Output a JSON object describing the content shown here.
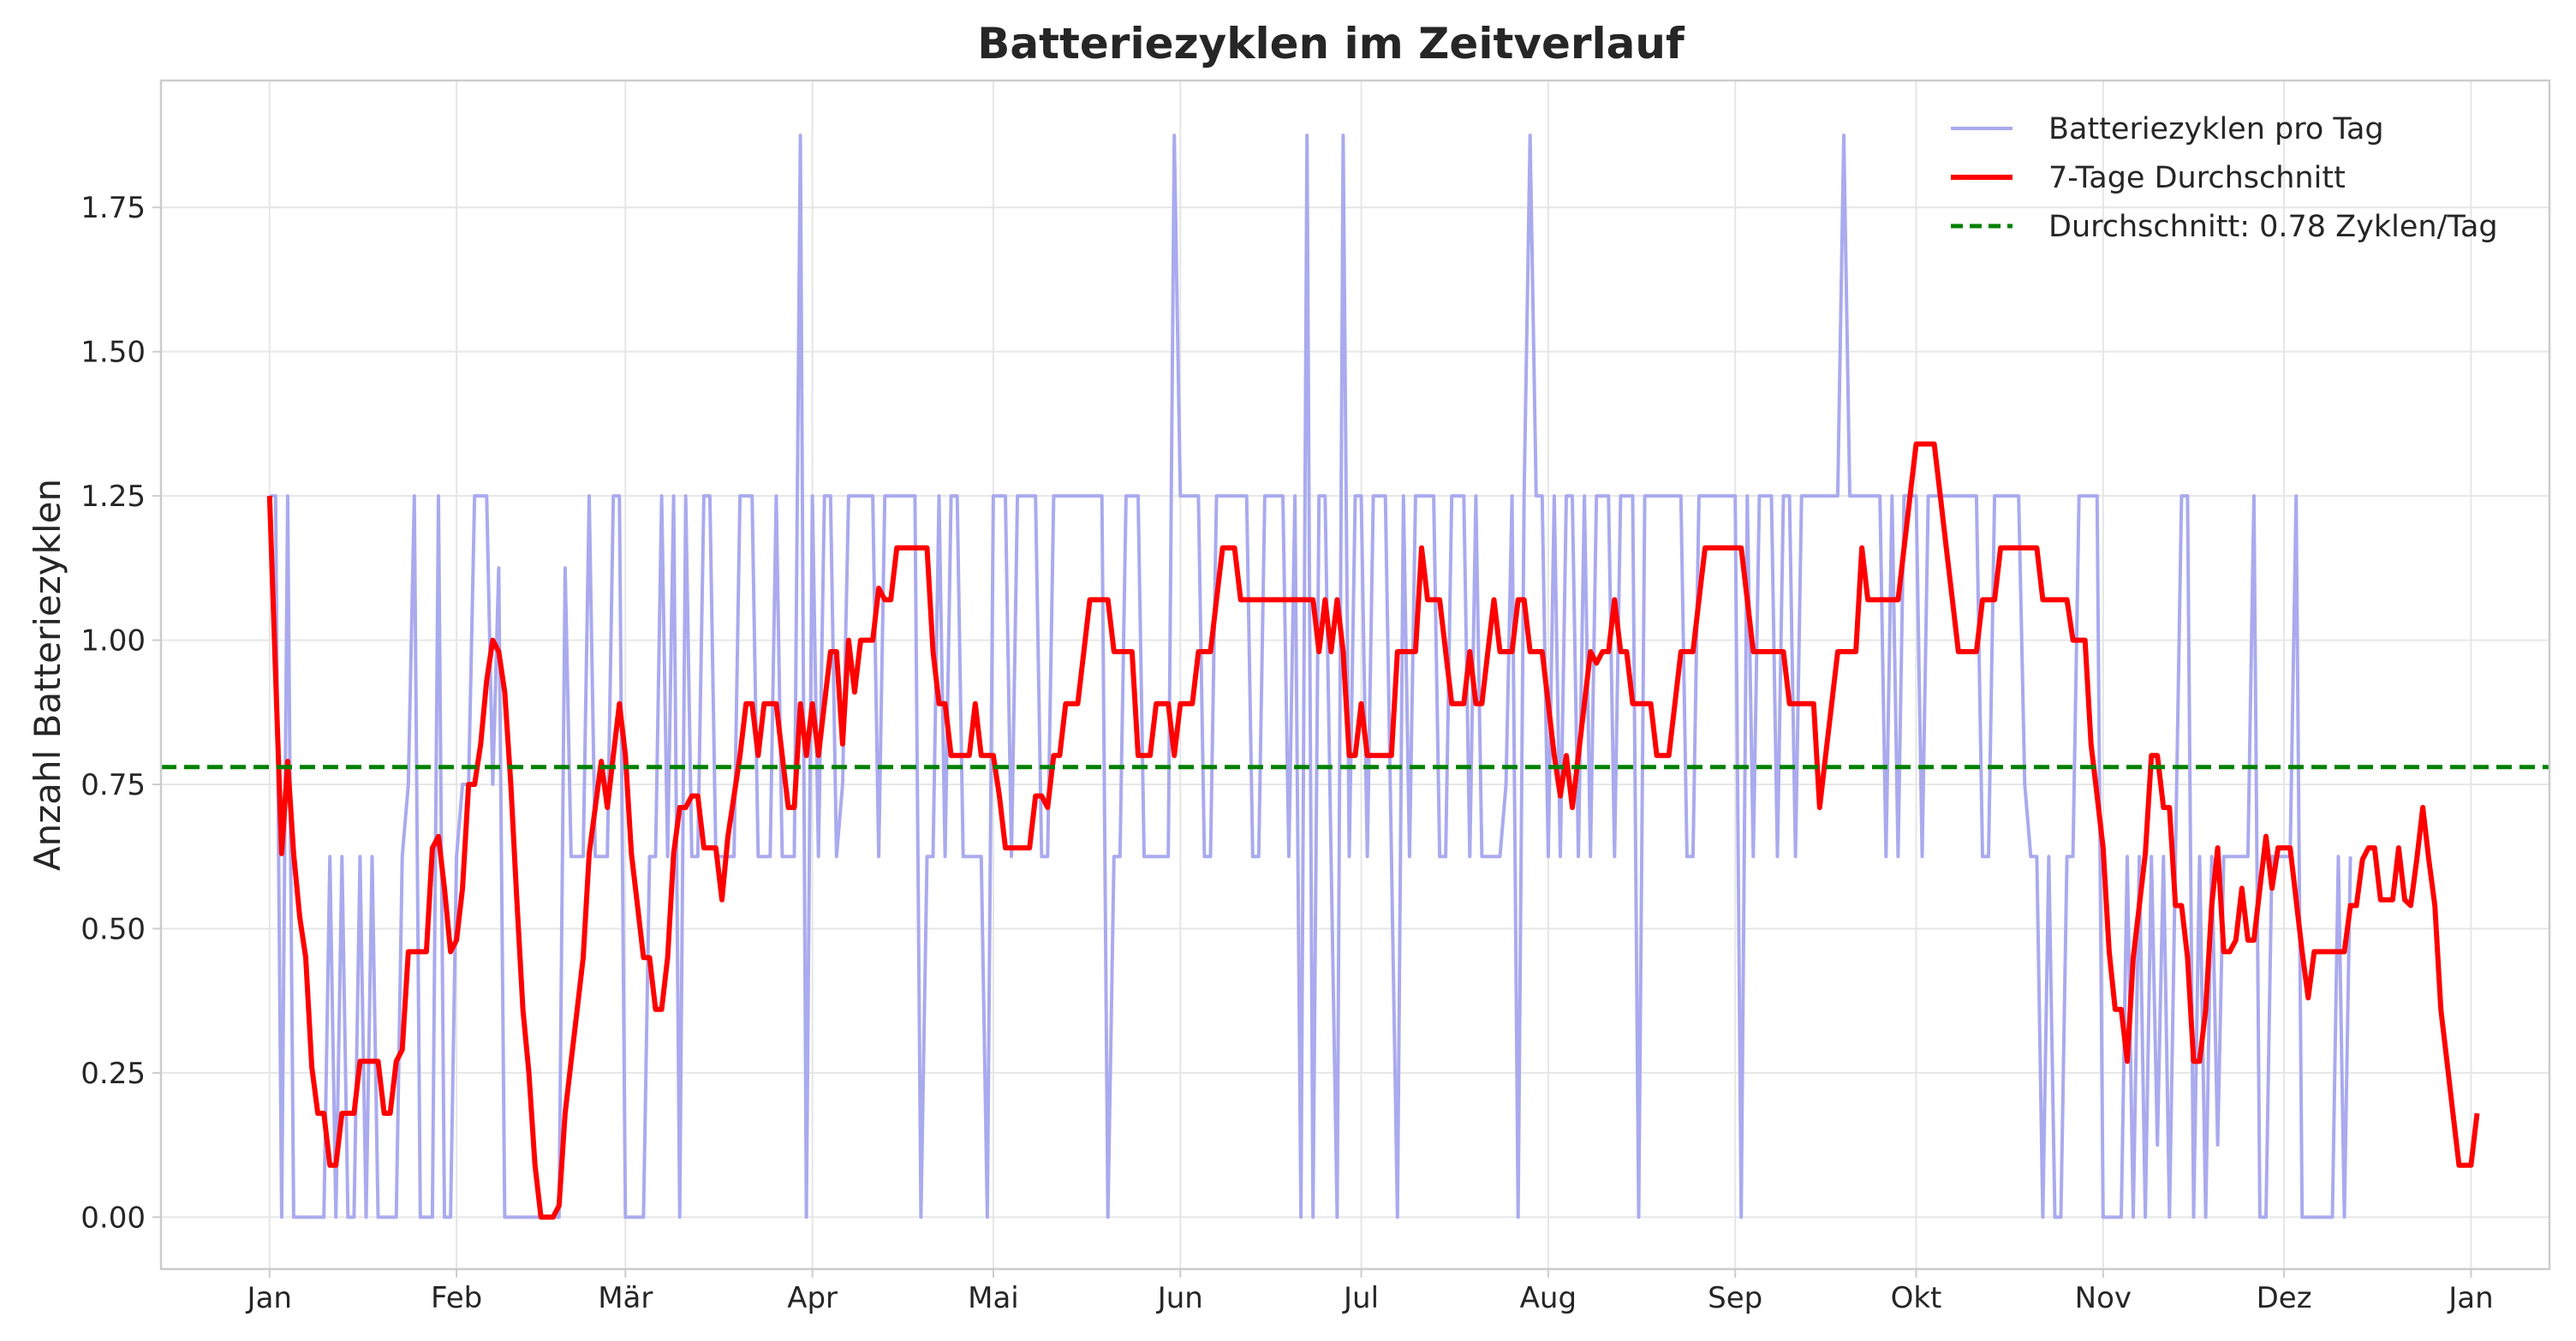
{
  "chart_data": {
    "type": "line",
    "title": "Batteriezyklen im Zeitverlauf",
    "xlabel": "",
    "ylabel": "Anzahl Batteriezyklen",
    "x_ticks": [
      "Jan",
      "Feb",
      "Mär",
      "Apr",
      "Mai",
      "Jun",
      "Jul",
      "Aug",
      "Sep",
      "Okt",
      "Nov",
      "Dez",
      "Jan"
    ],
    "x_tick_days": [
      0,
      31,
      59,
      90,
      120,
      151,
      181,
      212,
      243,
      273,
      304,
      334,
      365
    ],
    "x_range_days": [
      -18,
      378
    ],
    "y_ticks": [
      "0.00",
      "0.25",
      "0.50",
      "0.75",
      "1.00",
      "1.25",
      "1.50",
      "1.75"
    ],
    "ylim": [
      -0.09,
      1.97
    ],
    "grid": true,
    "legend_position": "top-right",
    "series": [
      {
        "name": "Batteriezyklen pro Tag",
        "color": "#aaaaee",
        "values": [
          1.25,
          1.25,
          0,
          1.25,
          0,
          0,
          0,
          0,
          0,
          0,
          0.625,
          0,
          0.625,
          0,
          0,
          0.625,
          0,
          0.625,
          0,
          0,
          0,
          0,
          0.625,
          0.75,
          1.25,
          0,
          0,
          0,
          1.25,
          0,
          0,
          0.625,
          0.75,
          0.75,
          1.25,
          1.25,
          1.25,
          0.75,
          1.125,
          0,
          0,
          0,
          0,
          0,
          0,
          0,
          0,
          0,
          0,
          1.125,
          0.625,
          0.625,
          0.625,
          1.25,
          0.625,
          0.625,
          0.625,
          1.25,
          1.25,
          0,
          0,
          0,
          0,
          0.625,
          0.625,
          1.25,
          0.625,
          1.25,
          0,
          1.25,
          0.625,
          0.625,
          1.25,
          1.25,
          0.625,
          0.625,
          0.625,
          0.625,
          1.25,
          1.25,
          1.25,
          0.625,
          0.625,
          0.625,
          1.25,
          0.625,
          0.625,
          0.625,
          1.875,
          0,
          1.25,
          0.625,
          1.25,
          1.25,
          0.625,
          0.75,
          1.25,
          1.25,
          1.25,
          1.25,
          1.25,
          0.625,
          1.25,
          1.25,
          1.25,
          1.25,
          1.25,
          1.25,
          0,
          0.625,
          0.625,
          1.25,
          0.625,
          1.25,
          1.25,
          0.625,
          0.625,
          0.625,
          0.625,
          0,
          1.25,
          1.25,
          1.25,
          0.625,
          1.25,
          1.25,
          1.25,
          1.25,
          0.625,
          0.625,
          1.25,
          1.25,
          1.25,
          1.25,
          1.25,
          1.25,
          1.25,
          1.25,
          1.25,
          0,
          0.625,
          0.625,
          1.25,
          1.25,
          1.25,
          0.625,
          0.625,
          0.625,
          0.625,
          0.625,
          1.875,
          1.25,
          1.25,
          1.25,
          1.25,
          0.625,
          0.625,
          1.25,
          1.25,
          1.25,
          1.25,
          1.25,
          1.25,
          0.625,
          0.625,
          1.25,
          1.25,
          1.25,
          1.25,
          0.625,
          1.25,
          0,
          1.875,
          0,
          1.25,
          1.25,
          0.625,
          0,
          1.875,
          0.625,
          1.25,
          1.25,
          0.625,
          1.25,
          1.25,
          1.25,
          0.625,
          0,
          1.25,
          0.625,
          1.25,
          1.25,
          1.25,
          1.25,
          0.625,
          0.625,
          1.25,
          1.25,
          1.25,
          0.625,
          1.25,
          0.625,
          0.625,
          0.625,
          0.625,
          0.75,
          1.25,
          0,
          1.25,
          1.875,
          1.25,
          1.25,
          0.625,
          1.25,
          0.625,
          1.25,
          1.25,
          0.625,
          1.25,
          0.625,
          1.25,
          1.25,
          1.25,
          0.625,
          1.25,
          1.25,
          1.25,
          0,
          1.25,
          1.25,
          1.25,
          1.25,
          1.25,
          1.25,
          1.25,
          0.625,
          0.625,
          1.25,
          1.25,
          1.25,
          1.25,
          1.25,
          1.25,
          1.25,
          0,
          1.25,
          0.625,
          1.25,
          1.25,
          1.25,
          0.625,
          1.25,
          1.25,
          0.625,
          1.25,
          1.25,
          1.25,
          1.25,
          1.25,
          1.25,
          1.25,
          1.875,
          1.25,
          1.25,
          1.25,
          1.25,
          1.25,
          1.25,
          0.625,
          1.25,
          0.625,
          1.25,
          1.25,
          1.25,
          0.625,
          1.25,
          1.25,
          1.25,
          1.25,
          1.25,
          1.25,
          1.25,
          1.25,
          1.25,
          0.625,
          0.625,
          1.25,
          1.25,
          1.25,
          1.25,
          1.25,
          0.75,
          0.625,
          0.625,
          0,
          0.625,
          0,
          0,
          0.625,
          0.625,
          1.25,
          1.25,
          1.25,
          1.25,
          0,
          0,
          0,
          0,
          0.625,
          0,
          0.625,
          0,
          0.625,
          0.125,
          0.625,
          0,
          0.625,
          1.25,
          1.25,
          0,
          0.625,
          0,
          0.625,
          0.125,
          0.625,
          0.625,
          0.625,
          0.625,
          0.625,
          1.25,
          0,
          0,
          0.625,
          0.625,
          0.625,
          0.625,
          1.25,
          0,
          0,
          0,
          0,
          0,
          0,
          0.625,
          0,
          0.625
        ]
      },
      {
        "name": "7-Tage Durchschnitt",
        "color": "#ff0000",
        "values": [
          1.25,
          0.94,
          0.63,
          0.79,
          0.63,
          0.52,
          0.45,
          0.26,
          0.18,
          0.18,
          0.09,
          0.09,
          0.18,
          0.18,
          0.18,
          0.27,
          0.27,
          0.27,
          0.27,
          0.18,
          0.18,
          0.27,
          0.29,
          0.46,
          0.46,
          0.46,
          0.46,
          0.64,
          0.66,
          0.57,
          0.46,
          0.48,
          0.57,
          0.75,
          0.75,
          0.82,
          0.93,
          1.0,
          0.98,
          0.91,
          0.75,
          0.55,
          0.36,
          0.25,
          0.09,
          0.0,
          0.0,
          0.0,
          0.02,
          0.18,
          0.27,
          0.36,
          0.45,
          0.63,
          0.71,
          0.79,
          0.71,
          0.8,
          0.89,
          0.8,
          0.63,
          0.54,
          0.45,
          0.45,
          0.36,
          0.36,
          0.45,
          0.63,
          0.71,
          0.71,
          0.73,
          0.73,
          0.64,
          0.64,
          0.64,
          0.55,
          0.66,
          0.73,
          0.8,
          0.89,
          0.89,
          0.8,
          0.89,
          0.89,
          0.89,
          0.8,
          0.71,
          0.71,
          0.89,
          0.8,
          0.89,
          0.8,
          0.89,
          0.98,
          0.98,
          0.82,
          1.0,
          0.91,
          1.0,
          1.0,
          1.0,
          1.09,
          1.07,
          1.07,
          1.16,
          1.16,
          1.16,
          1.16,
          1.16,
          1.16,
          0.98,
          0.89,
          0.89,
          0.8,
          0.8,
          0.8,
          0.8,
          0.89,
          0.8,
          0.8,
          0.8,
          0.73,
          0.64,
          0.64,
          0.64,
          0.64,
          0.64,
          0.73,
          0.73,
          0.71,
          0.8,
          0.8,
          0.89,
          0.89,
          0.89,
          0.98,
          1.07,
          1.07,
          1.07,
          1.07,
          0.98,
          0.98,
          0.98,
          0.98,
          0.8,
          0.8,
          0.8,
          0.89,
          0.89,
          0.89,
          0.8,
          0.89,
          0.89,
          0.89,
          0.98,
          0.98,
          0.98,
          1.07,
          1.16,
          1.16,
          1.16,
          1.07,
          1.07,
          1.07,
          1.07,
          1.07,
          1.07,
          1.07,
          1.07,
          1.07,
          1.07,
          1.07,
          1.07,
          1.07,
          0.98,
          1.07,
          0.98,
          1.07,
          0.98,
          0.8,
          0.8,
          0.89,
          0.8,
          0.8,
          0.8,
          0.8,
          0.8,
          0.98,
          0.98,
          0.98,
          0.98,
          1.16,
          1.07,
          1.07,
          1.07,
          0.98,
          0.89,
          0.89,
          0.89,
          0.98,
          0.89,
          0.89,
          0.98,
          1.07,
          0.98,
          0.98,
          0.98,
          1.07,
          1.07,
          0.98,
          0.98,
          0.98,
          0.89,
          0.8,
          0.73,
          0.8,
          0.71,
          0.8,
          0.89,
          0.98,
          0.96,
          0.98,
          0.98,
          1.07,
          0.98,
          0.98,
          0.89,
          0.89,
          0.89,
          0.89,
          0.8,
          0.8,
          0.8,
          0.89,
          0.98,
          0.98,
          0.98,
          1.07,
          1.16,
          1.16,
          1.16,
          1.16,
          1.16,
          1.16,
          1.16,
          1.07,
          0.98,
          0.98,
          0.98,
          0.98,
          0.98,
          0.98,
          0.89,
          0.89,
          0.89,
          0.89,
          0.89,
          0.71,
          0.8,
          0.89,
          0.98,
          0.98,
          0.98,
          0.98,
          1.16,
          1.07,
          1.07,
          1.07,
          1.07,
          1.07,
          1.07,
          1.16,
          1.25,
          1.34,
          1.34,
          1.34,
          1.34,
          1.25,
          1.16,
          1.07,
          0.98,
          0.98,
          0.98,
          0.98,
          1.07,
          1.07,
          1.07,
          1.16,
          1.16,
          1.16,
          1.16,
          1.16,
          1.16,
          1.16,
          1.07,
          1.07,
          1.07,
          1.07,
          1.07,
          1.0,
          1.0,
          1.0,
          0.82,
          0.73,
          0.64,
          0.46,
          0.36,
          0.36,
          0.27,
          0.45,
          0.54,
          0.63,
          0.8,
          0.8,
          0.71,
          0.71,
          0.54,
          0.54,
          0.45,
          0.27,
          0.27,
          0.36,
          0.54,
          0.64,
          0.46,
          0.46,
          0.48,
          0.57,
          0.48,
          0.48,
          0.57,
          0.66,
          0.57,
          0.64,
          0.64,
          0.64,
          0.55,
          0.46,
          0.38,
          0.46,
          0.46,
          0.46,
          0.46,
          0.46,
          0.46,
          0.54,
          0.54,
          0.62,
          0.64,
          0.64,
          0.55,
          0.55,
          0.55,
          0.64,
          0.55,
          0.54,
          0.62,
          0.71,
          0.62,
          0.54,
          0.36,
          0.27,
          0.18,
          0.09,
          0.09,
          0.09,
          0.18
        ]
      },
      {
        "name": "Durchschnitt: 0.78 Zyklen/Tag",
        "color": "#008000",
        "value": 0.78
      }
    ]
  }
}
